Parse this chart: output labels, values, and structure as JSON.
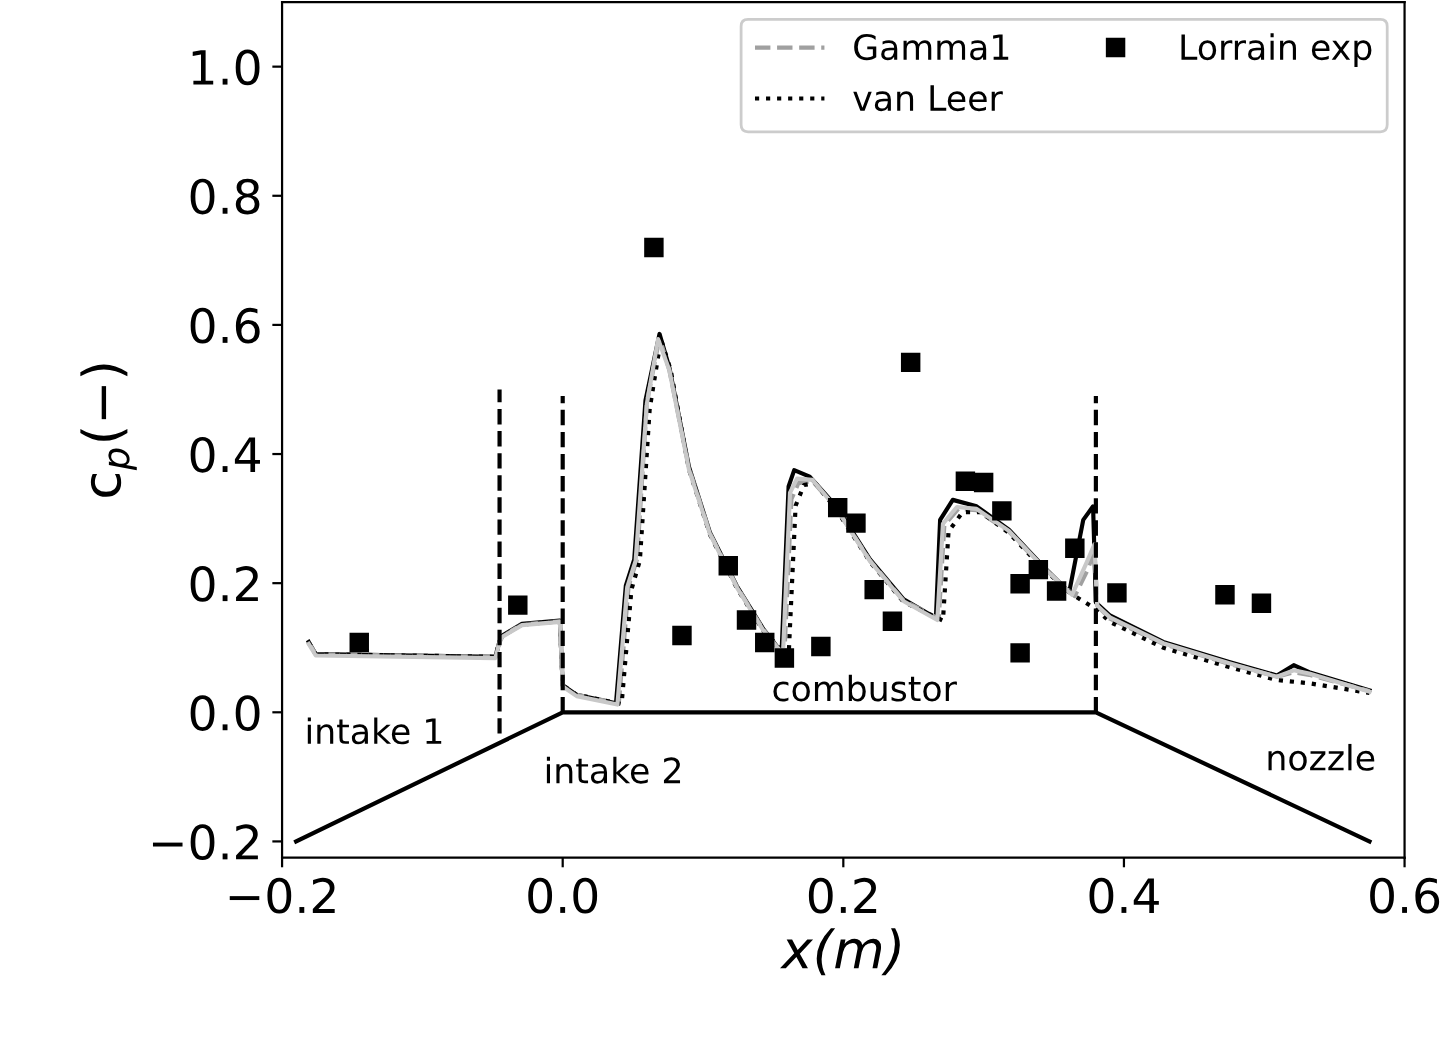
{
  "chart_data": {
    "type": "line",
    "xlabel": "x(m)",
    "ylabel": "c$_{p}$(−)",
    "xlim": [
      -0.2,
      0.6
    ],
    "ylim": [
      -0.225,
      1.1
    ],
    "xticks": [
      {
        "value": -0.2,
        "label": "−0.2"
      },
      {
        "value": 0,
        "label": "0.0"
      },
      {
        "value": 0.2,
        "label": "0.2"
      },
      {
        "value": 0.4,
        "label": "0.4"
      },
      {
        "value": 0.6,
        "label": "0.6"
      }
    ],
    "yticks": [
      {
        "value": -0.2,
        "label": "−0.2"
      },
      {
        "value": 0,
        "label": "0.0"
      },
      {
        "value": 0.2,
        "label": "0.2"
      },
      {
        "value": 0.4,
        "label": "0.4"
      },
      {
        "value": 0.6,
        "label": "0.6"
      },
      {
        "value": 0.8,
        "label": "0.8"
      },
      {
        "value": 1.0,
        "label": "1.0"
      }
    ],
    "grid": false,
    "legend": "top right",
    "marker": "none",
    "series": [
      {
        "color": "#000000",
        "line_style": "solid",
        "x": [
          -0.181,
          -0.176,
          -0.048,
          -0.045,
          -0.043,
          -0.029,
          -0.002,
          0.0,
          0.01,
          0.038,
          0.045,
          0.051,
          0.059,
          0.069,
          0.076,
          0.09,
          0.105,
          0.124,
          0.143,
          0.156,
          0.161,
          0.165,
          0.176,
          0.195,
          0.219,
          0.243,
          0.266,
          0.269,
          0.278,
          0.295,
          0.318,
          0.342,
          0.361,
          0.371,
          0.378,
          0.38,
          0.39,
          0.428,
          0.475,
          0.509,
          0.521,
          0.532,
          0.575
        ],
        "values": [
          0.109,
          0.09,
          0.086,
          0.11,
          0.119,
          0.137,
          0.142,
          0.042,
          0.027,
          0.014,
          0.196,
          0.237,
          0.483,
          0.586,
          0.534,
          0.38,
          0.278,
          0.196,
          0.129,
          0.093,
          0.35,
          0.375,
          0.365,
          0.319,
          0.237,
          0.175,
          0.146,
          0.298,
          0.329,
          0.319,
          0.283,
          0.227,
          0.186,
          0.298,
          0.319,
          0.17,
          0.15,
          0.109,
          0.078,
          0.057,
          0.073,
          0.062,
          0.034
        ]
      },
      {
        "name": "Gamma1",
        "color": "#a0a0a0",
        "line_style": "dashed",
        "x": [
          -0.181,
          -0.176,
          -0.048,
          -0.045,
          -0.043,
          -0.029,
          -0.002,
          0.0,
          0.01,
          0.04,
          0.047,
          0.053,
          0.06,
          0.069,
          0.076,
          0.09,
          0.105,
          0.124,
          0.143,
          0.158,
          0.163,
          0.168,
          0.178,
          0.195,
          0.219,
          0.243,
          0.268,
          0.272,
          0.282,
          0.295,
          0.318,
          0.342,
          0.365,
          0.374,
          0.379,
          0.381,
          0.39,
          0.428,
          0.475,
          0.509,
          0.521,
          0.532,
          0.575
        ],
        "values": [
          0.108,
          0.09,
          0.086,
          0.11,
          0.118,
          0.136,
          0.141,
          0.042,
          0.027,
          0.014,
          0.196,
          0.237,
          0.48,
          0.58,
          0.53,
          0.378,
          0.277,
          0.195,
          0.128,
          0.09,
          0.33,
          0.355,
          0.358,
          0.316,
          0.235,
          0.173,
          0.145,
          0.29,
          0.315,
          0.313,
          0.28,
          0.225,
          0.18,
          0.22,
          0.25,
          0.165,
          0.145,
          0.106,
          0.075,
          0.055,
          0.062,
          0.058,
          0.033
        ]
      },
      {
        "name": "van Leer",
        "color": "#000000",
        "line_style": "dotted",
        "x": [
          -0.181,
          -0.176,
          -0.048,
          -0.045,
          -0.043,
          -0.029,
          -0.002,
          0.0,
          0.01,
          0.042,
          0.049,
          0.055,
          0.062,
          0.07,
          0.077,
          0.09,
          0.105,
          0.124,
          0.143,
          0.161,
          0.166,
          0.172,
          0.18,
          0.195,
          0.219,
          0.243,
          0.271,
          0.275,
          0.285,
          0.298,
          0.318,
          0.342,
          0.365,
          0.38,
          0.39,
          0.428,
          0.475,
          0.509,
          0.532,
          0.575
        ],
        "values": [
          0.108,
          0.09,
          0.086,
          0.11,
          0.118,
          0.136,
          0.141,
          0.042,
          0.027,
          0.013,
          0.19,
          0.235,
          0.47,
          0.578,
          0.53,
          0.376,
          0.275,
          0.193,
          0.126,
          0.086,
          0.32,
          0.352,
          0.355,
          0.314,
          0.233,
          0.171,
          0.142,
          0.28,
          0.31,
          0.31,
          0.278,
          0.223,
          0.18,
          0.16,
          0.14,
          0.1,
          0.07,
          0.05,
          0.045,
          0.03
        ]
      },
      {
        "color": "#c8c8c8",
        "line_style": "solid",
        "x": [
          -0.181,
          -0.176,
          -0.048,
          -0.045,
          -0.043,
          -0.029,
          -0.002,
          0.0,
          0.01,
          0.039,
          0.046,
          0.052,
          0.06,
          0.068,
          0.076,
          0.09,
          0.105,
          0.124,
          0.143,
          0.157,
          0.162,
          0.167,
          0.178,
          0.195,
          0.219,
          0.243,
          0.267,
          0.271,
          0.281,
          0.295,
          0.318,
          0.342,
          0.363,
          0.373,
          0.379,
          0.381,
          0.39,
          0.428,
          0.475,
          0.509,
          0.521,
          0.532,
          0.575
        ],
        "values": [
          0.106,
          0.088,
          0.084,
          0.108,
          0.117,
          0.135,
          0.14,
          0.04,
          0.025,
          0.012,
          0.194,
          0.235,
          0.478,
          0.578,
          0.53,
          0.376,
          0.276,
          0.194,
          0.127,
          0.09,
          0.34,
          0.362,
          0.36,
          0.316,
          0.234,
          0.172,
          0.143,
          0.292,
          0.318,
          0.315,
          0.281,
          0.226,
          0.182,
          0.23,
          0.26,
          0.165,
          0.147,
          0.107,
          0.076,
          0.055,
          0.065,
          0.06,
          0.032
        ]
      },
      {
        "name": "Lorrain exp",
        "type": "scatter",
        "marker": "square",
        "color": "#000000",
        "x": [
          -0.145,
          -0.032,
          0.065,
          0.085,
          0.118,
          0.131,
          0.144,
          0.158,
          0.184,
          0.196,
          0.209,
          0.222,
          0.235,
          0.248,
          0.287,
          0.3,
          0.313,
          0.326,
          0.326,
          0.339,
          0.352,
          0.365,
          0.395,
          0.472,
          0.498
        ],
        "values": [
          0.108,
          0.166,
          0.72,
          0.119,
          0.227,
          0.143,
          0.108,
          0.084,
          0.102,
          0.317,
          0.293,
          0.19,
          0.141,
          0.542,
          0.358,
          0.356,
          0.312,
          0.199,
          0.092,
          0.221,
          0.188,
          0.254,
          0.185,
          0.182,
          0.169
        ]
      },
      {
        "color": "#000000",
        "line_style": "solid",
        "x": [
          -0.19,
          0.0,
          0.38,
          0.575
        ],
        "values": [
          -0.2,
          0.0,
          0.0,
          -0.2
        ]
      },
      {
        "color": "#000000",
        "line_style": "dashed",
        "x": [
          -0.045,
          -0.045
        ],
        "values": [
          -0.033,
          0.5
        ]
      },
      {
        "color": "#000000",
        "line_style": "dashed",
        "x": [
          0.0,
          0.0
        ],
        "values": [
          0.0,
          0.49
        ]
      },
      {
        "color": "#000000",
        "line_style": "dashed",
        "x": [
          0.38,
          0.38
        ],
        "values": [
          0.0,
          0.49
        ]
      }
    ],
    "annotations": [
      "intake 1",
      "intake 2",
      "combustor",
      "nozzle"
    ]
  }
}
